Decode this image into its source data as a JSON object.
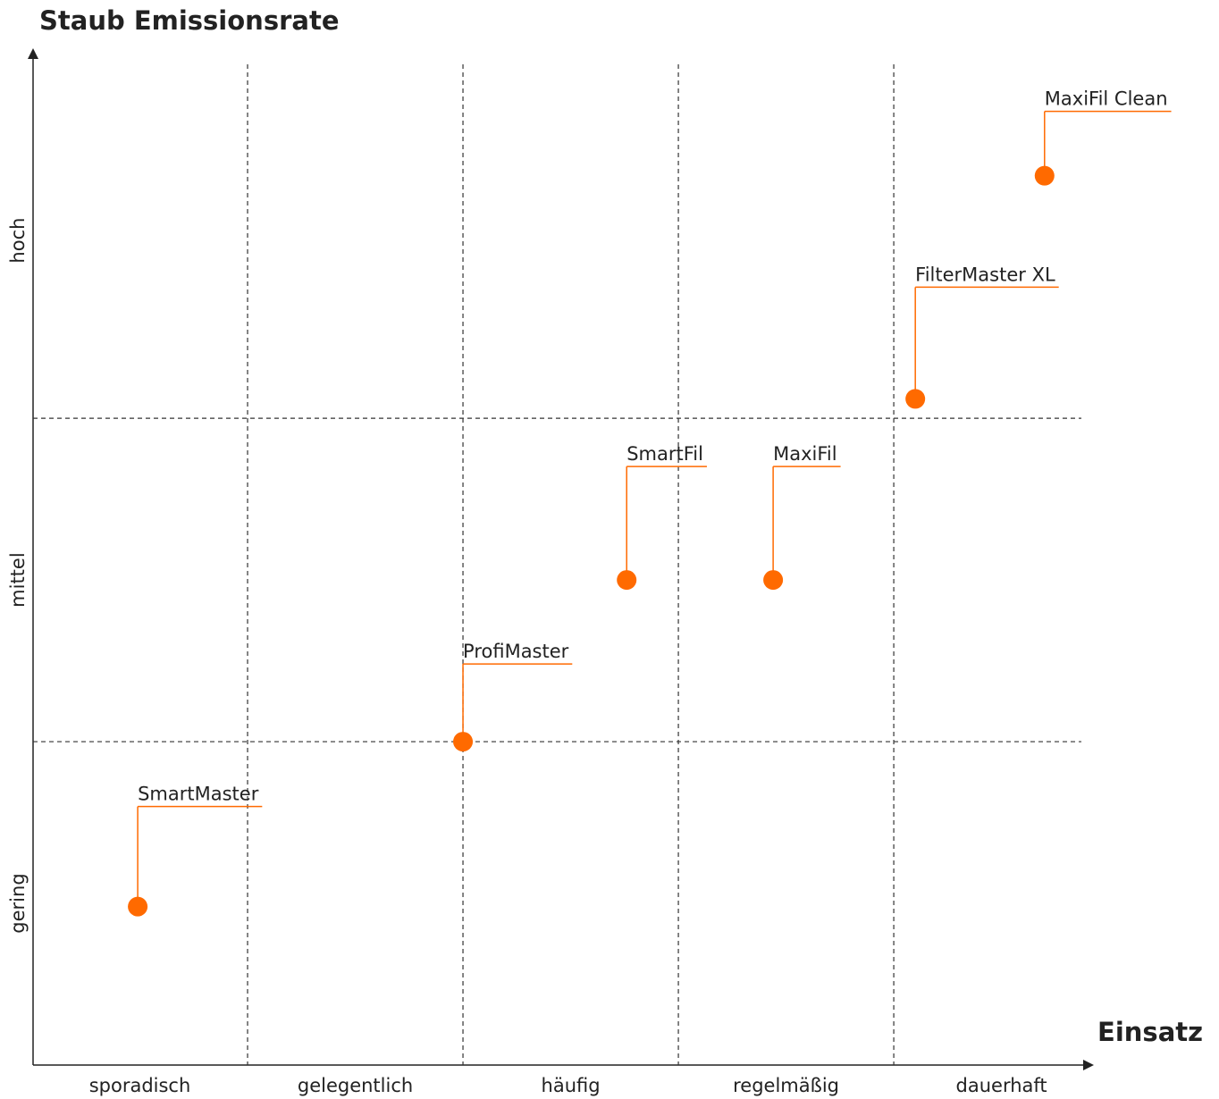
{
  "chart_data": {
    "type": "scatter",
    "title": "Staub Emissionsrate",
    "x_label": "Einsatz",
    "labels": [
      "SmartMaster",
      "ProfiMaster",
      "SmartFil",
      "MaxiFil",
      "FilterMaster XL",
      "MaxiFil Clean"
    ],
    "x": [
      0.49,
      2.0,
      2.76,
      3.44,
      4.1,
      4.7
    ],
    "values": [
      0.49,
      1.0,
      1.5,
      1.5,
      2.06,
      2.75
    ],
    "color": "#ff6a00",
    "xlim": [
      0,
      4.9
    ],
    "ylim": [
      0,
      3.1
    ],
    "xticks": [
      {
        "value": 0.5,
        "label": "sporadisch"
      },
      {
        "value": 1.5,
        "label": "gelegentlich"
      },
      {
        "value": 2.5,
        "label": "häufig"
      },
      {
        "value": 3.5,
        "label": "regelmäßig"
      },
      {
        "value": 4.5,
        "label": "dauerhaft"
      }
    ],
    "yticks": [
      {
        "value": 0.5,
        "label": "gering"
      },
      {
        "value": 1.5,
        "label": "mittel"
      },
      {
        "value": 2.55,
        "label": "hoch"
      }
    ],
    "xgrid": [
      1,
      2,
      3,
      4
    ],
    "ygrid": [
      1,
      2
    ]
  }
}
